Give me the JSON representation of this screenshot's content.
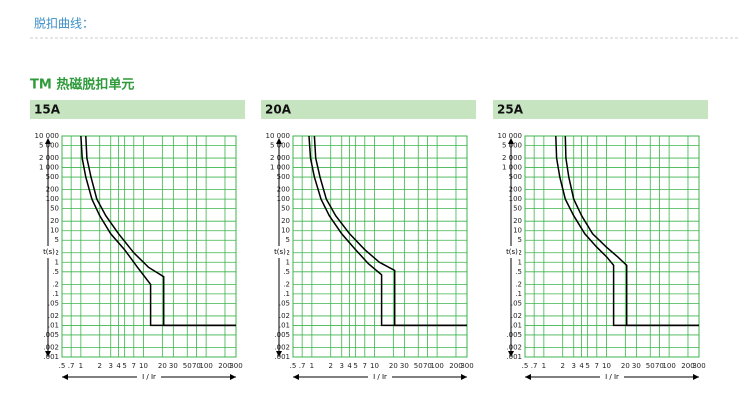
{
  "header": {
    "title": "脱扣曲线：",
    "section": "TM 热磁脱扣单元"
  },
  "chart_data": [
    {
      "type": "line",
      "title": "15A",
      "x_label": "I / Ir",
      "y_label": "t(s)",
      "xlim": [
        0.5,
        300
      ],
      "ylim": [
        0.001,
        10000
      ],
      "log_x": true,
      "log_y": true,
      "grid": true,
      "grid_color": "#3cb44b",
      "xticks": [
        {
          "value": 0.5,
          "label": ".5"
        },
        {
          "value": 0.7,
          "label": ".7"
        },
        1,
        2,
        3,
        4,
        5,
        7,
        10,
        20,
        30,
        50,
        70,
        100,
        200,
        300
      ],
      "yticks": [
        {
          "value": 10000,
          "label": "10 000"
        },
        {
          "value": 5000,
          "label": "5 000"
        },
        {
          "value": 2000,
          "label": "2 000"
        },
        {
          "value": 1000,
          "label": "1 000"
        },
        500,
        200,
        100,
        50,
        20,
        10,
        5,
        2,
        1,
        {
          "value": 0.5,
          "label": ".5"
        },
        {
          "value": 0.2,
          "label": ".2"
        },
        {
          "value": 0.1,
          "label": ".1"
        },
        {
          "value": 0.05,
          "label": ".05"
        },
        {
          "value": 0.02,
          "label": ".02"
        },
        {
          "value": 0.01,
          "label": ".01"
        },
        {
          "value": 0.005,
          "label": ".005"
        },
        {
          "value": 0.002,
          "label": ".002"
        },
        {
          "value": 0.001,
          "label": ".001"
        }
      ],
      "series": [
        {
          "color": "#000000",
          "x": [
            1.0,
            1.05,
            1.2,
            1.5,
            2,
            3,
            5,
            8,
            13,
            13,
            300
          ],
          "values": [
            10000,
            2000,
            500,
            100,
            30,
            8,
            2.5,
            0.7,
            0.2,
            0.01,
            0.01
          ]
        },
        {
          "color": "#000000",
          "x": [
            1.2,
            1.25,
            1.45,
            1.8,
            2.5,
            4,
            7,
            12,
            21,
            21,
            300
          ],
          "values": [
            10000,
            2000,
            500,
            100,
            30,
            8,
            2,
            0.7,
            0.35,
            0.01,
            0.01
          ]
        }
      ]
    },
    {
      "type": "line",
      "title": "20A",
      "x_label": "I / Ir",
      "y_label": "t(s)",
      "xlim": [
        0.5,
        300
      ],
      "ylim": [
        0.001,
        10000
      ],
      "log_x": true,
      "log_y": true,
      "grid": true,
      "grid_color": "#3cb44b",
      "xticks": [
        {
          "value": 0.5,
          "label": ".5"
        },
        {
          "value": 0.7,
          "label": ".7"
        },
        1,
        2,
        3,
        4,
        5,
        7,
        10,
        20,
        30,
        50,
        70,
        100,
        200,
        300
      ],
      "yticks": [
        {
          "value": 10000,
          "label": "10 000"
        },
        {
          "value": 5000,
          "label": "5 000"
        },
        {
          "value": 2000,
          "label": "2 000"
        },
        {
          "value": 1000,
          "label": "1 000"
        },
        500,
        200,
        100,
        50,
        20,
        10,
        5,
        2,
        1,
        {
          "value": 0.5,
          "label": ".5"
        },
        {
          "value": 0.2,
          "label": ".2"
        },
        {
          "value": 0.1,
          "label": ".1"
        },
        {
          "value": 0.05,
          "label": ".05"
        },
        {
          "value": 0.02,
          "label": ".02"
        },
        {
          "value": 0.01,
          "label": ".01"
        },
        {
          "value": 0.005,
          "label": ".005"
        },
        {
          "value": 0.002,
          "label": ".002"
        },
        {
          "value": 0.001,
          "label": ".001"
        }
      ],
      "series": [
        {
          "color": "#000000",
          "x": [
            0.9,
            0.95,
            1.1,
            1.4,
            1.9,
            3,
            5,
            8,
            13,
            13,
            300
          ],
          "values": [
            10000,
            2000,
            500,
            100,
            30,
            8,
            2.5,
            0.9,
            0.4,
            0.01,
            0.01
          ]
        },
        {
          "color": "#000000",
          "x": [
            1.1,
            1.15,
            1.35,
            1.7,
            2.4,
            4,
            7,
            12,
            21,
            21,
            300
          ],
          "values": [
            10000,
            2000,
            500,
            100,
            30,
            8,
            2.5,
            1,
            0.55,
            0.01,
            0.01
          ]
        }
      ]
    },
    {
      "type": "line",
      "title": "25A",
      "x_label": "I / Ir",
      "y_label": "t(s)",
      "xlim": [
        0.5,
        300
      ],
      "ylim": [
        0.001,
        10000
      ],
      "log_x": true,
      "log_y": true,
      "grid": true,
      "grid_color": "#3cb44b",
      "xticks": [
        {
          "value": 0.5,
          "label": ".5"
        },
        {
          "value": 0.7,
          "label": ".7"
        },
        1,
        2,
        3,
        4,
        5,
        7,
        10,
        20,
        30,
        50,
        70,
        100,
        200,
        300
      ],
      "yticks": [
        {
          "value": 10000,
          "label": "10 000"
        },
        {
          "value": 5000,
          "label": "5 000"
        },
        {
          "value": 2000,
          "label": "2 000"
        },
        {
          "value": 1000,
          "label": "1 000"
        },
        500,
        200,
        100,
        50,
        20,
        10,
        5,
        2,
        1,
        {
          "value": 0.5,
          "label": ".5"
        },
        {
          "value": 0.2,
          "label": ".2"
        },
        {
          "value": 0.1,
          "label": ".1"
        },
        {
          "value": 0.05,
          "label": ".05"
        },
        {
          "value": 0.02,
          "label": ".02"
        },
        {
          "value": 0.01,
          "label": ".01"
        },
        {
          "value": 0.005,
          "label": ".005"
        },
        {
          "value": 0.002,
          "label": ".002"
        },
        {
          "value": 0.001,
          "label": ".001"
        }
      ],
      "series": [
        {
          "color": "#000000",
          "x": [
            1.55,
            1.6,
            1.8,
            2.2,
            3,
            4.5,
            7,
            10,
            13,
            13,
            300
          ],
          "values": [
            10000,
            2000,
            500,
            100,
            30,
            8,
            3,
            1.5,
            0.8,
            0.01,
            0.01
          ]
        },
        {
          "color": "#000000",
          "x": [
            2.2,
            2.25,
            2.5,
            3,
            4,
            6,
            10,
            15,
            21,
            21,
            300
          ],
          "values": [
            10000,
            2000,
            500,
            100,
            30,
            8,
            3,
            1.5,
            0.8,
            0.01,
            0.01
          ]
        }
      ]
    }
  ]
}
